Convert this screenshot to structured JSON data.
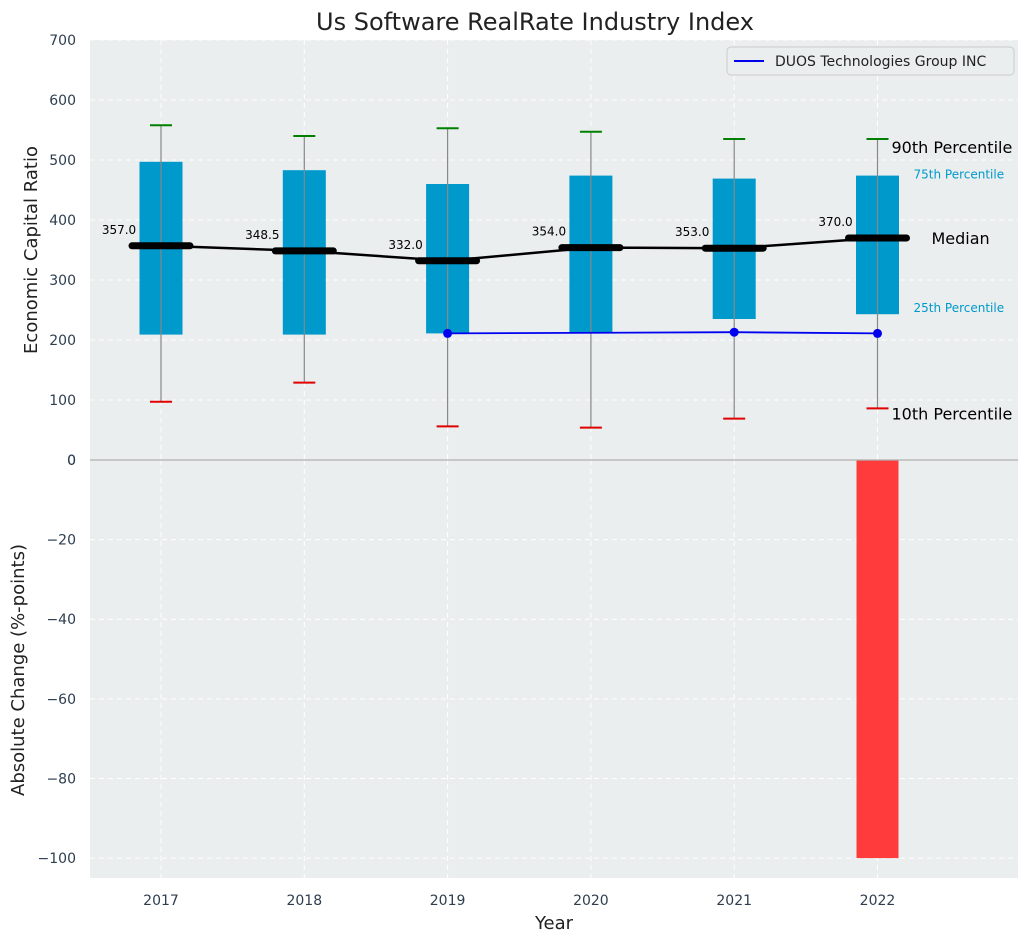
{
  "chart_data": [
    {
      "type": "box",
      "title": "Us Software RealRate Industry Index",
      "ylabel": "Economic Capital Ratio",
      "ylim": [
        0,
        700
      ],
      "yticks": [
        0,
        100,
        200,
        300,
        400,
        500,
        600,
        700
      ],
      "grid": true,
      "legend_position": "top-right",
      "categories": [
        "2017",
        "2018",
        "2019",
        "2020",
        "2021",
        "2022"
      ],
      "p10": [
        97,
        129,
        56,
        54,
        69,
        86
      ],
      "p25": [
        209,
        209,
        211,
        212,
        235,
        243
      ],
      "median": [
        357.0,
        348.5,
        332.0,
        354.0,
        353.0,
        370.0
      ],
      "median_labels": [
        "357.0",
        "348.5",
        "332.0",
        "354.0",
        "353.0",
        "370.0"
      ],
      "p75": [
        497,
        483,
        460,
        474,
        469,
        474
      ],
      "p90": [
        558,
        540,
        553,
        547,
        535,
        535
      ],
      "series": [
        {
          "name": "DUOS Technologies Group INC",
          "x": [
            "2019",
            "2021",
            "2022"
          ],
          "values": [
            211,
            213,
            211
          ],
          "color": "#0000ee"
        }
      ],
      "annotations": {
        "p90": "90th Percentile",
        "p75": "75th Percentile",
        "median": "Median",
        "p25": "25th Percentile",
        "p10": "10th Percentile"
      },
      "colors": {
        "box": "#0099cc",
        "median_line": "#000000",
        "p90_cap": "#008000",
        "p10_cap": "#e00000",
        "background": "#eaeeee"
      }
    },
    {
      "type": "bar",
      "xlabel": "Year",
      "ylabel": "Absolute Change (%-points)",
      "ylim": [
        -105,
        0
      ],
      "yticks": [
        0,
        -20,
        -40,
        -60,
        -80,
        -100
      ],
      "ytick_labels": [
        "0",
        "−20",
        "−40",
        "−60",
        "−80",
        "−100"
      ],
      "grid": true,
      "categories": [
        "2017",
        "2018",
        "2019",
        "2020",
        "2021",
        "2022"
      ],
      "values": [
        null,
        null,
        null,
        null,
        null,
        -100
      ],
      "color": "#ff3b3b"
    }
  ]
}
